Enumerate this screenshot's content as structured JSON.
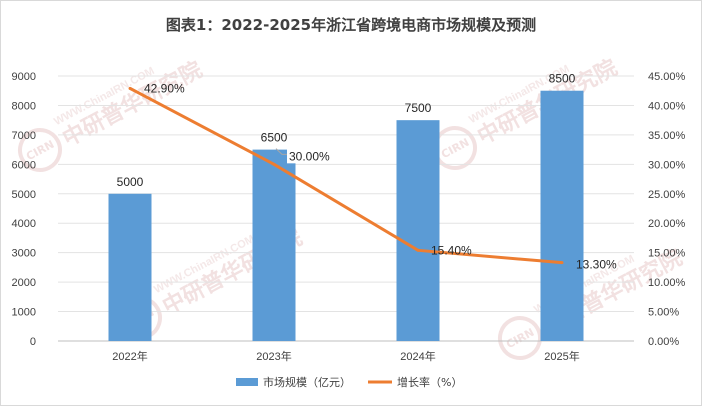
{
  "chart_data": {
    "type": "bar",
    "title": "图表1：2022-2025年浙江省跨境电商市场规模及预测",
    "categories": [
      "2022年",
      "2023年",
      "2024年",
      "2025年"
    ],
    "series": [
      {
        "name": "市场规模（亿元）",
        "type": "bar",
        "axis": "left",
        "color": "#5b9bd5",
        "values": [
          5000,
          6500,
          7500,
          8500
        ],
        "labels": [
          "5000",
          "6500",
          "7500",
          "8500"
        ]
      },
      {
        "name": "增长率（%）",
        "type": "line",
        "axis": "right",
        "color": "#ed7d31",
        "values": [
          42.9,
          30.0,
          15.4,
          13.3
        ],
        "labels": [
          "42.90%",
          "30.00%",
          "15.40%",
          "13.30%"
        ]
      }
    ],
    "y_left": {
      "min": 0,
      "max": 9000,
      "step": 1000,
      "ticks": [
        "0",
        "1000",
        "2000",
        "3000",
        "4000",
        "5000",
        "6000",
        "7000",
        "8000",
        "9000"
      ]
    },
    "y_right": {
      "min": 0,
      "max": 45,
      "step": 5,
      "ticks": [
        "0.00%",
        "5.00%",
        "10.00%",
        "15.00%",
        "20.00%",
        "25.00%",
        "30.00%",
        "35.00%",
        "40.00%",
        "45.00%"
      ]
    },
    "grid": true,
    "legend_position": "bottom"
  },
  "watermark": {
    "url": "WWW.ChinaIRN.COM",
    "name": "中研普华研究院",
    "logo": "CIRN",
    "color": "#e7c9c9"
  }
}
